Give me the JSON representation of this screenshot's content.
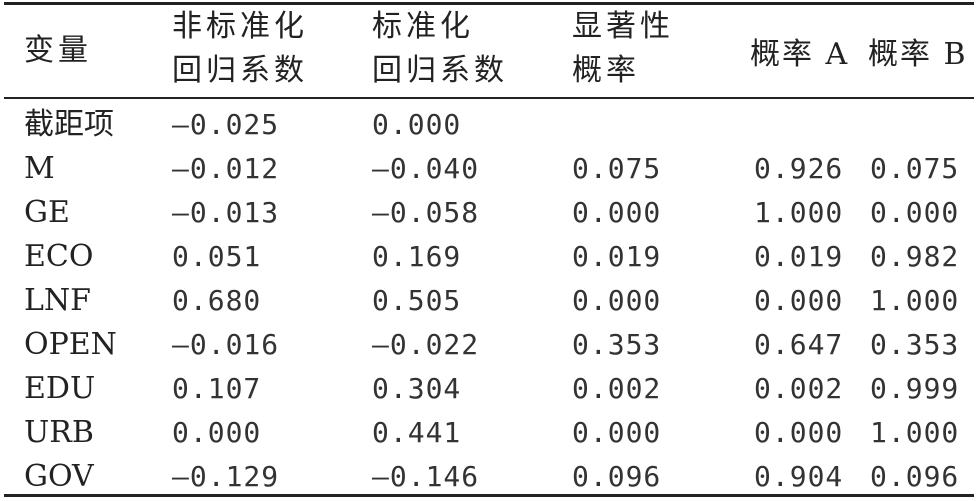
{
  "table": {
    "headers": [
      {
        "line1": "变量",
        "line2": ""
      },
      {
        "line1": "非标准化",
        "line2": "回归系数"
      },
      {
        "line1": "标准化",
        "line2": "回归系数"
      },
      {
        "line1": "显著性",
        "line2": "概率"
      },
      {
        "line1": "概率 A",
        "line2": ""
      },
      {
        "line1": "概率 B",
        "line2": ""
      }
    ],
    "rows": [
      [
        "截距项",
        "—0.025",
        "0.000",
        "",
        "",
        ""
      ],
      [
        "M",
        "—0.012",
        "—0.040",
        "0.075",
        "0.926",
        "0.075"
      ],
      [
        "GE",
        "—0.013",
        "—0.058",
        "0.000",
        "1.000",
        "0.000"
      ],
      [
        "ECO",
        "0.051",
        "0.169",
        "0.019",
        "0.019",
        "0.982"
      ],
      [
        "LNF",
        "0.680",
        "0.505",
        "0.000",
        "0.000",
        "1.000"
      ],
      [
        "OPEN",
        "—0.016",
        "—0.022",
        "0.353",
        "0.647",
        "0.353"
      ],
      [
        "EDU",
        "0.107",
        "0.304",
        "0.002",
        "0.002",
        "0.999"
      ],
      [
        "URB",
        "0.000",
        "0.441",
        "0.000",
        "0.000",
        "1.000"
      ],
      [
        "GOV",
        "—0.129",
        "—0.146",
        "0.096",
        "0.904",
        "0.096"
      ]
    ]
  }
}
